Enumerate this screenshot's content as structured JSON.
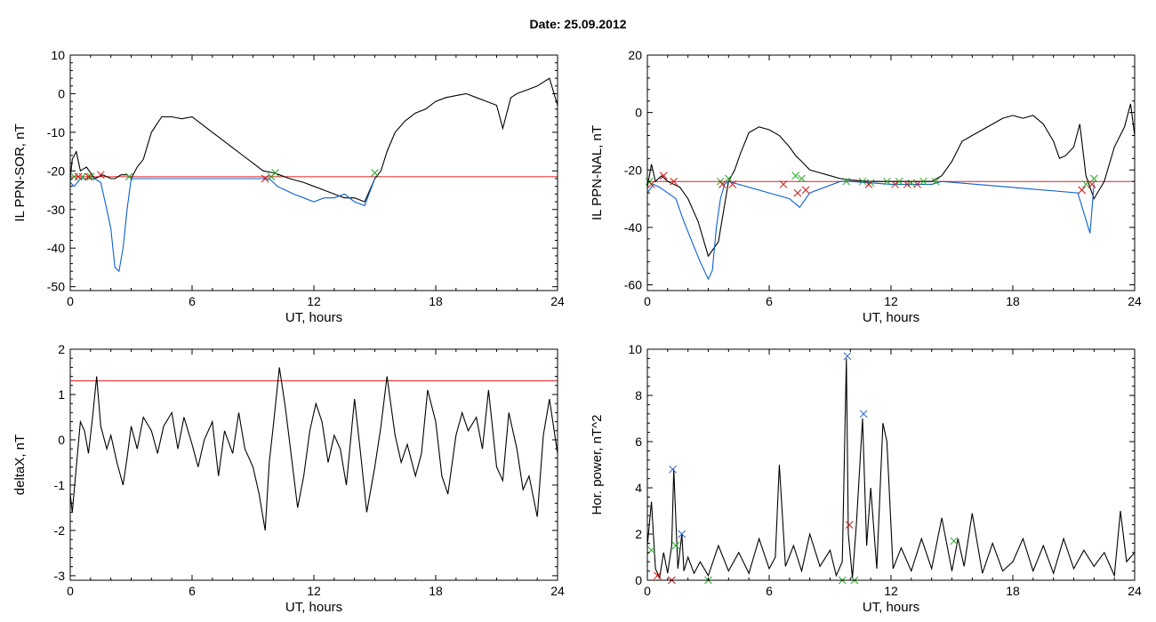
{
  "header": {
    "date_label": "Date:  25.09.2012"
  },
  "chart_data": [
    {
      "id": "p1",
      "type": "line",
      "xlabel": "UT, hours",
      "ylabel": "IL PPN-SOR, nT",
      "xlim": [
        0,
        24
      ],
      "ylim": [
        -51,
        10
      ],
      "xticks": [
        0,
        6,
        12,
        18,
        24
      ],
      "yticks": [
        -50,
        -40,
        -30,
        -20,
        -10,
        0,
        10
      ],
      "threshold": -21.5,
      "series": [
        {
          "color": "#000000",
          "x": [
            0,
            0.1,
            0.3,
            0.5,
            0.8,
            1.2,
            1.6,
            2,
            2.2,
            2.5,
            2.8,
            3,
            3.3,
            3.6,
            4,
            4.5,
            5,
            5.5,
            6,
            6.5,
            7,
            7.5,
            8,
            8.5,
            9,
            9.5,
            10,
            10.3,
            10.8,
            11.5,
            12,
            12.5,
            13,
            13.5,
            14,
            14.5,
            15,
            15.3,
            15.6,
            16,
            16.5,
            17,
            17.5,
            18,
            18.5,
            19,
            19.5,
            20,
            20.5,
            21,
            21.3,
            21.7,
            22,
            22.5,
            23,
            23.3,
            23.6,
            24
          ],
          "y": [
            -22,
            -17,
            -15,
            -20,
            -19,
            -22,
            -21,
            -22,
            -22,
            -21,
            -21,
            -22,
            -19,
            -17,
            -10,
            -6,
            -6,
            -6.5,
            -6,
            -8,
            -10,
            -12,
            -14,
            -16,
            -18,
            -20,
            -20.5,
            -21,
            -22,
            -23,
            -24,
            -25,
            -26,
            -27,
            -27,
            -28,
            -22,
            -20,
            -15,
            -10,
            -7,
            -5,
            -4,
            -2,
            -1,
            -0.5,
            0,
            -1,
            -2,
            -3,
            -9,
            -1,
            0,
            1,
            2,
            3,
            4,
            -3
          ]
        },
        {
          "color": "#0a5fd0",
          "x": [
            0,
            0.2,
            0.5,
            0.8,
            1.2,
            1.5,
            1.8,
            2,
            2.2,
            2.4,
            2.6,
            2.8,
            3,
            9.8,
            10.2,
            10.6,
            11,
            11.5,
            12,
            12.5,
            13,
            13.5,
            14,
            14.5,
            15
          ],
          "y": [
            -23,
            -24,
            -22,
            -22,
            -22,
            -23,
            -30,
            -35,
            -45,
            -46,
            -40,
            -30,
            -22,
            -22,
            -24,
            -25,
            -26,
            -27,
            -28,
            -27,
            -27,
            -26,
            -28,
            -29,
            -22
          ]
        }
      ],
      "markers": [
        {
          "symbol": "x",
          "color": "#22a822",
          "x": [
            0.2,
            0.6,
            1.0,
            2.9,
            9.9,
            10.1,
            15.0
          ],
          "y": [
            -21.5,
            -21.5,
            -21.5,
            -21.5,
            -21.5,
            -20.5,
            -20.5
          ]
        },
        {
          "symbol": "x",
          "color": "#cc1111",
          "x": [
            0.4,
            0.9,
            1.5,
            9.6
          ],
          "y": [
            -21.5,
            -21.5,
            -21,
            -22
          ]
        }
      ]
    },
    {
      "id": "p2",
      "type": "line",
      "xlabel": "UT, hours",
      "ylabel": "IL PPN-NAL, nT",
      "xlim": [
        0,
        24
      ],
      "ylim": [
        -62,
        20
      ],
      "xticks": [
        0,
        6,
        12,
        18,
        24
      ],
      "yticks": [
        -60,
        -40,
        -20,
        0,
        20
      ],
      "threshold": -24,
      "series": [
        {
          "color": "#000000",
          "x": [
            0,
            0.2,
            0.4,
            0.7,
            1.0,
            1.3,
            1.6,
            2.0,
            2.5,
            3.0,
            3.5,
            4.0,
            4.3,
            4.6,
            5,
            5.5,
            6,
            6.5,
            7,
            7.3,
            7.6,
            8,
            8.5,
            9,
            9.5,
            10,
            11,
            12,
            13,
            14,
            14.5,
            15,
            15.5,
            16,
            16.5,
            17,
            17.5,
            18,
            18.5,
            19,
            19.5,
            20,
            20.3,
            20.6,
            21,
            21.3,
            21.6,
            22,
            22.5,
            23,
            23.5,
            23.8,
            24
          ],
          "y": [
            -26,
            -18,
            -24,
            -22,
            -24,
            -25,
            -26,
            -30,
            -38,
            -50,
            -45,
            -24,
            -20,
            -14,
            -7,
            -5,
            -6,
            -8,
            -12,
            -15,
            -17,
            -20,
            -21,
            -22,
            -23,
            -23.5,
            -24,
            -24,
            -24,
            -24,
            -22,
            -17,
            -10,
            -8,
            -6,
            -4,
            -2,
            -1,
            -2,
            -1,
            -4,
            -10,
            -16,
            -15,
            -12,
            -4,
            -22,
            -30,
            -24,
            -12,
            -5,
            3,
            -8
          ]
        },
        {
          "color": "#0a5fd0",
          "x": [
            0,
            0.3,
            0.6,
            1.0,
            1.4,
            1.8,
            2.2,
            2.6,
            3.0,
            3.2,
            3.4,
            3.6,
            3.8,
            4.0,
            7.0,
            7.5,
            8.0,
            9.5,
            10,
            11,
            12,
            13,
            14,
            14.5,
            21.2,
            21.5,
            21.8,
            22
          ],
          "y": [
            -28,
            -25,
            -26,
            -28,
            -30,
            -38,
            -45,
            -52,
            -58,
            -55,
            -40,
            -30,
            -25,
            -24,
            -30,
            -33,
            -28,
            -24,
            -24,
            -24.5,
            -25,
            -25,
            -25,
            -24,
            -28,
            -35,
            -42,
            -25
          ]
        }
      ],
      "markers": [
        {
          "symbol": "x",
          "color": "#22a822",
          "x": [
            0.1,
            3.6,
            4.0,
            7.3,
            7.6,
            9.8,
            10.6,
            11.0,
            11.8,
            12.4,
            13.0,
            13.6,
            14.2,
            21.6,
            22.0
          ],
          "y": [
            -24,
            -24,
            -23,
            -22,
            -23,
            -24,
            -24,
            -24.5,
            -24,
            -24,
            -24.5,
            -24,
            -24,
            -25,
            -23
          ]
        },
        {
          "symbol": "x",
          "color": "#cc1111",
          "x": [
            0.2,
            0.8,
            1.3,
            3.7,
            4.2,
            6.7,
            7.4,
            7.8,
            10.9,
            12.2,
            12.8,
            13.3,
            21.4,
            21.9
          ],
          "y": [
            -25,
            -22,
            -24,
            -25,
            -25,
            -25,
            -28,
            -27,
            -25,
            -25,
            -25,
            -25,
            -27,
            -25
          ]
        }
      ]
    },
    {
      "id": "p3",
      "type": "line",
      "xlabel": "UT, hours",
      "ylabel": "deltaX, nT",
      "xlim": [
        0,
        24
      ],
      "ylim": [
        -3.1,
        2.0
      ],
      "xticks": [
        0,
        6,
        12,
        18,
        24
      ],
      "yticks": [
        -3,
        -2,
        -1,
        0,
        1,
        2
      ],
      "threshold": 1.3,
      "series": [
        {
          "color": "#000000",
          "x": [
            0,
            0.1,
            0.3,
            0.5,
            0.7,
            0.9,
            1.1,
            1.3,
            1.5,
            1.8,
            2.0,
            2.3,
            2.6,
            2.8,
            3.0,
            3.3,
            3.6,
            4.0,
            4.3,
            4.6,
            5.0,
            5.3,
            5.6,
            6.0,
            6.3,
            6.6,
            7.0,
            7.3,
            7.6,
            8.0,
            8.3,
            8.6,
            9.0,
            9.3,
            9.6,
            9.8,
            10.0,
            10.3,
            10.6,
            10.9,
            11.2,
            11.5,
            11.8,
            12.1,
            12.4,
            12.7,
            13.0,
            13.3,
            13.6,
            14.0,
            14.3,
            14.6,
            15.0,
            15.3,
            15.6,
            16.0,
            16.3,
            16.6,
            17.0,
            17.3,
            17.6,
            18.0,
            18.3,
            18.6,
            19.0,
            19.3,
            19.6,
            20.0,
            20.3,
            20.6,
            21.0,
            21.3,
            21.6,
            22.0,
            22.3,
            22.6,
            23.0,
            23.3,
            23.6,
            24
          ],
          "y": [
            -1.2,
            -1.6,
            -0.6,
            0.4,
            0.2,
            -0.3,
            0.5,
            1.4,
            0.3,
            -0.2,
            0.1,
            -0.5,
            -1.0,
            -0.4,
            0.3,
            -0.2,
            0.5,
            0.2,
            -0.3,
            0.3,
            0.6,
            -0.2,
            0.5,
            -0.1,
            -0.6,
            0.0,
            0.4,
            -0.8,
            0.2,
            -0.3,
            0.6,
            -0.2,
            -0.6,
            -1.2,
            -2.0,
            -0.5,
            0.3,
            1.6,
            0.7,
            -0.4,
            -1.5,
            -0.8,
            0.2,
            0.8,
            0.4,
            -0.5,
            0.1,
            -0.2,
            -1.0,
            0.9,
            -0.3,
            -1.6,
            -0.6,
            0.3,
            1.4,
            0.1,
            -0.5,
            -0.1,
            -0.8,
            -0.3,
            1.1,
            0.4,
            -0.8,
            -1.2,
            0.1,
            0.6,
            0.2,
            0.5,
            -0.2,
            1.1,
            -0.6,
            -0.9,
            0.6,
            -0.2,
            -1.1,
            -0.8,
            -1.7,
            0.1,
            0.9,
            -0.3
          ]
        }
      ]
    },
    {
      "id": "p4",
      "type": "line",
      "xlabel": "UT, hours",
      "ylabel": "Hor. power, nT^2",
      "xlim": [
        0,
        24
      ],
      "ylim": [
        0,
        10
      ],
      "xticks": [
        0,
        6,
        12,
        18,
        24
      ],
      "yticks": [
        0,
        2,
        4,
        6,
        8,
        10
      ],
      "threshold": null,
      "series": [
        {
          "color": "#000000",
          "x": [
            0,
            0.2,
            0.4,
            0.6,
            0.8,
            1.0,
            1.2,
            1.3,
            1.5,
            1.7,
            1.8,
            2.0,
            2.3,
            2.6,
            3.0,
            3.5,
            4.0,
            4.5,
            5.0,
            5.5,
            6.0,
            6.3,
            6.5,
            6.8,
            7.2,
            7.6,
            8.0,
            8.5,
            9.0,
            9.3,
            9.6,
            9.8,
            9.9,
            10.1,
            10.3,
            10.6,
            10.8,
            11.0,
            11.3,
            11.6,
            11.8,
            12.1,
            12.5,
            13.0,
            13.5,
            14.0,
            14.5,
            15.0,
            15.3,
            15.6,
            16.0,
            16.5,
            17.0,
            17.5,
            18.0,
            18.5,
            19.0,
            19.5,
            20.0,
            20.5,
            21.0,
            21.5,
            22.0,
            22.5,
            23.0,
            23.3,
            23.6,
            24
          ],
          "y": [
            1.5,
            3.4,
            0.5,
            0.1,
            1.2,
            0.3,
            1.5,
            4.8,
            0.5,
            2.0,
            0.4,
            1.0,
            0.3,
            0.8,
            0.2,
            1.5,
            0.4,
            1.2,
            0.3,
            1.8,
            0.5,
            1.0,
            5.0,
            0.6,
            1.5,
            0.4,
            2.0,
            0.6,
            1.3,
            0.2,
            0.8,
            9.6,
            2.0,
            0.1,
            2.5,
            7.0,
            1.5,
            4.0,
            0.5,
            6.8,
            6.0,
            0.5,
            1.4,
            0.4,
            1.8,
            0.5,
            2.7,
            0.4,
            1.8,
            0.6,
            2.9,
            0.3,
            1.6,
            0.4,
            0.8,
            1.8,
            0.4,
            1.5,
            0.3,
            1.8,
            0.5,
            1.3,
            0.6,
            1.2,
            0.2,
            3.0,
            0.8,
            1.2
          ]
        }
      ],
      "markers": [
        {
          "symbol": "x",
          "color": "#1a5fd0",
          "x": [
            1.25,
            1.7,
            9.85,
            10.65
          ],
          "y": [
            4.8,
            2.0,
            9.7,
            7.2
          ]
        },
        {
          "symbol": "x",
          "color": "#cc1111",
          "x": [
            0.5,
            1.2,
            9.95
          ],
          "y": [
            0.2,
            0.0,
            2.4
          ]
        },
        {
          "symbol": "x",
          "color": "#22a822",
          "x": [
            0.2,
            1.4,
            3.0,
            9.6,
            10.2,
            15.1
          ],
          "y": [
            1.3,
            1.5,
            0.0,
            0.0,
            0.0,
            1.7
          ]
        }
      ]
    }
  ]
}
